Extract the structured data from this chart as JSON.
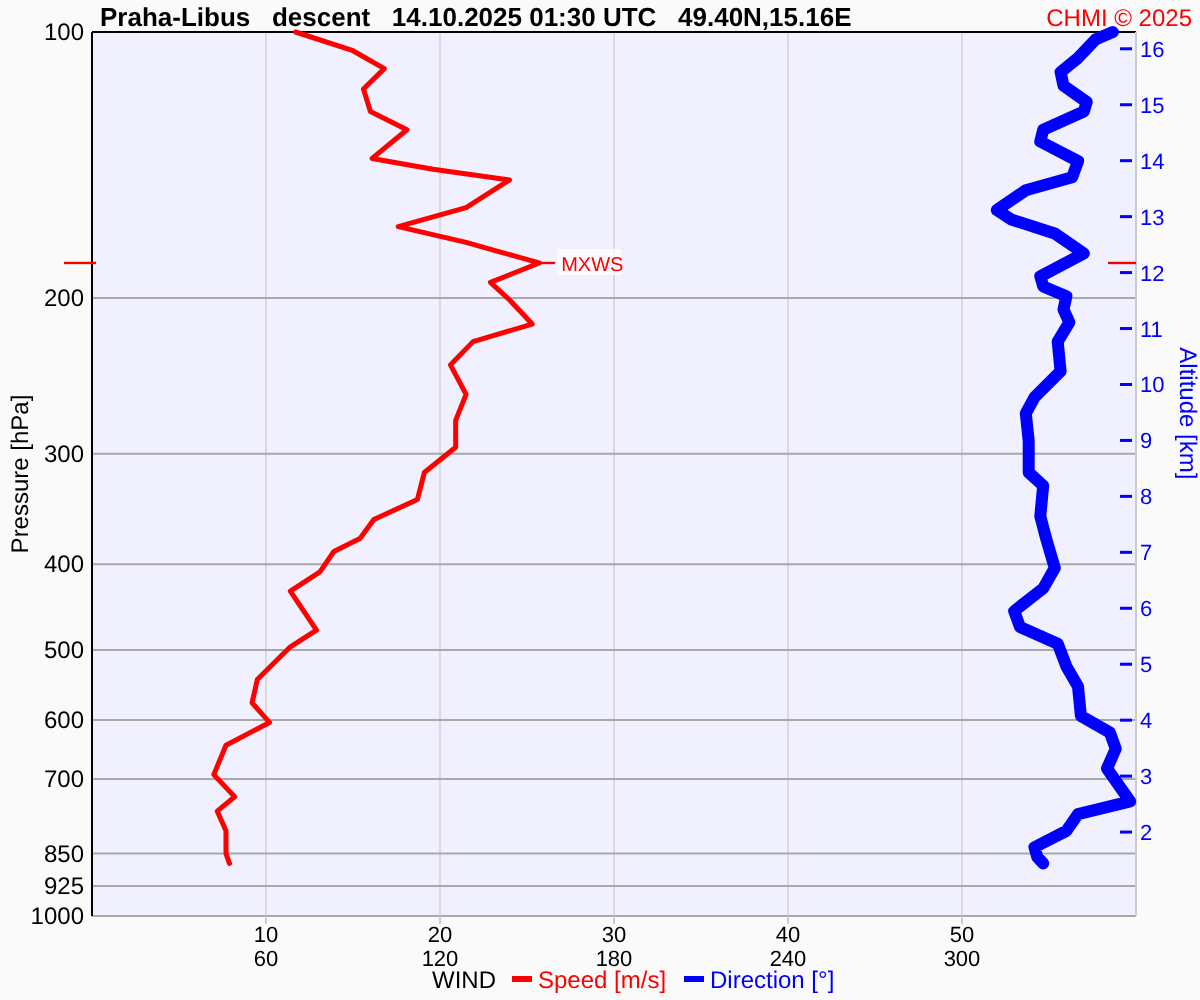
{
  "chart_data": {
    "type": "line",
    "orientation": "horizontal",
    "title": "Praha-Libus   descent   14.10.2025 01:30 UTC   49.40N,15.16E",
    "annotations": [
      "CHMI © 2025"
    ],
    "xlabel": "WIND",
    "ylabel": "Pressure [hPa]",
    "y2label": "Altitude [km]",
    "xlim": [
      0,
      60
    ],
    "xticks": [
      10,
      20,
      30,
      40,
      50
    ],
    "x2lim": [
      0,
      360
    ],
    "x2ticks": [
      60,
      120,
      180,
      240,
      300
    ],
    "ylim": [
      1000,
      100
    ],
    "yticks": [
      100,
      200,
      300,
      400,
      500,
      600,
      700,
      850,
      925,
      1000
    ],
    "log": "y",
    "y2lim": [
      0.5,
      16.3
    ],
    "y2ticks": [
      2,
      3,
      4,
      5,
      6,
      7,
      8,
      9,
      10,
      11,
      12,
      13,
      14,
      15,
      16
    ],
    "grid": true,
    "legend": "bottom",
    "tick_labels": "xy",
    "ref_lines": [
      {
        "axis": "y",
        "value": 182.5,
        "label": "MXWS",
        "color": "#ff0000"
      }
    ],
    "series": [
      {
        "name": "Speed [m/s]",
        "color": "#ff0000",
        "values": [
          11.7,
          15.0,
          16.8,
          15.6,
          16.0,
          18.1,
          16.1,
          19.6,
          24.0,
          21.5,
          17.6,
          21.5,
          25.7,
          22.9,
          24.0,
          25.3,
          21.9,
          20.6,
          21.5,
          20.9,
          20.9,
          19.1,
          18.7,
          16.2,
          15.4,
          13.9,
          13.1,
          11.4,
          12.9,
          11.4,
          9.5,
          9.2,
          10.2,
          7.7,
          7.0,
          8.2,
          7.2,
          7.7,
          7.7,
          7.9
        ],
        "x": [
          100,
          105,
          110,
          116,
          123,
          129,
          139,
          143,
          147,
          158,
          166,
          173,
          182.5,
          192,
          201,
          214,
          224,
          238,
          257,
          275,
          295,
          315,
          338,
          356,
          374,
          387,
          408,
          429,
          475,
          496,
          540,
          574,
          604,
          641,
          692,
          733,
          761,
          801,
          850,
          872
        ]
      },
      {
        "name": "Direction [°]",
        "color": "#0000ff",
        "axis": "x2",
        "values": [
          352,
          346,
          340,
          334,
          335,
          343,
          342,
          328,
          327,
          340,
          338,
          322,
          312,
          317,
          332,
          342,
          327,
          328,
          336,
          335,
          337,
          333,
          334,
          325,
          322,
          323,
          323,
          328,
          327,
          329,
          332,
          328,
          318,
          320,
          333,
          336,
          340,
          341,
          351,
          353,
          350,
          358,
          340,
          336,
          325,
          326,
          328
        ],
        "x": [
          100,
          102,
          107,
          111,
          115,
          120,
          123,
          129,
          133,
          140,
          146,
          151,
          159,
          163,
          169,
          178,
          189,
          194,
          199,
          206,
          213,
          224,
          242,
          259,
          270,
          290,
          315,
          326,
          353,
          374,
          404,
          426,
          452,
          471,
          492,
          522,
          550,
          594,
          620,
          647,
          681,
          742,
          767,
          801,
          836,
          858,
          872
        ]
      }
    ]
  }
}
